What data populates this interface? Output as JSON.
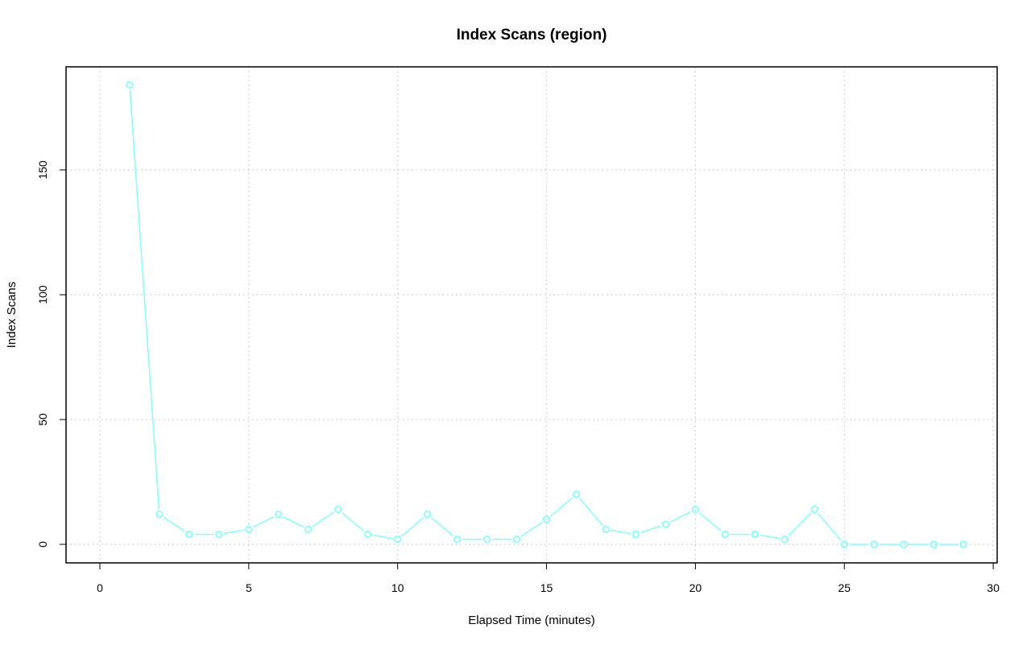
{
  "chart_data": {
    "type": "line",
    "title": "Index Scans (region)",
    "xlabel": "Elapsed Time (minutes)",
    "ylabel": "Index Scans",
    "xlim": [
      0,
      30
    ],
    "ylim": [
      0,
      184
    ],
    "x_ticks": [
      0,
      5,
      10,
      15,
      20,
      25,
      30
    ],
    "y_ticks": [
      0,
      50,
      100,
      150
    ],
    "grid": true,
    "series": [
      {
        "color": "#7fffff",
        "marker": "open-circle",
        "x": [
          1,
          2,
          3,
          4,
          5,
          6,
          7,
          8,
          9,
          10,
          11,
          12,
          13,
          14,
          15,
          16,
          17,
          18,
          19,
          20,
          21,
          22,
          23,
          24,
          25,
          26,
          27,
          28,
          29
        ],
        "values": [
          184,
          12,
          4,
          4,
          6,
          12,
          6,
          14,
          4,
          2,
          12,
          2,
          2,
          2,
          10,
          20,
          6,
          4,
          8,
          14,
          4,
          4,
          2,
          14,
          0,
          0,
          0,
          0,
          0
        ]
      }
    ]
  }
}
